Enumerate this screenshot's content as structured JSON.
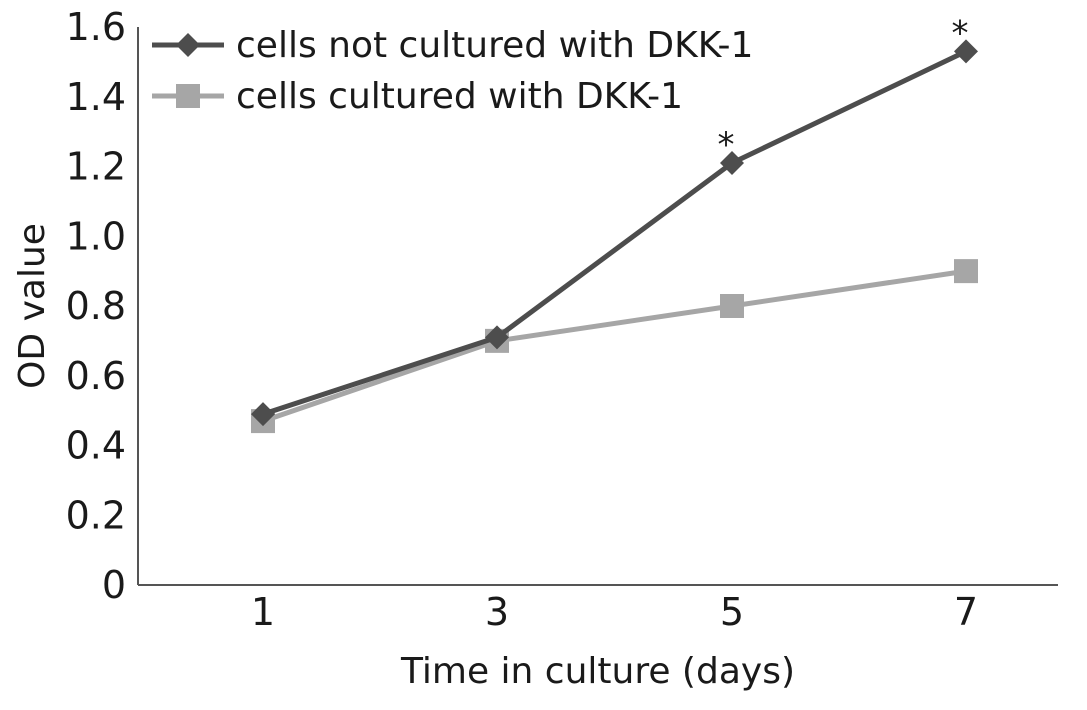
{
  "chart_data": {
    "type": "line",
    "title": "",
    "xlabel": "Time in culture (days)",
    "ylabel": "OD value",
    "x": [
      1,
      3,
      5,
      7
    ],
    "xticks": [
      "1",
      "3",
      "5",
      "7"
    ],
    "ylim": [
      0,
      1.6
    ],
    "yticks": [
      "0",
      "0.2",
      "0.4",
      "0.6",
      "0.8",
      "1.0",
      "1.2",
      "1.4",
      "1.6"
    ],
    "grid": false,
    "legend_position": "top-left",
    "series": [
      {
        "name": "cells not cultured with DKK-1",
        "values": [
          0.49,
          0.71,
          1.21,
          1.53
        ],
        "marker": "diamond",
        "color": "#4d4d4d",
        "annotations": [
          "",
          "",
          "*",
          "*"
        ]
      },
      {
        "name": "cells cultured with DKK-1",
        "values": [
          0.47,
          0.7,
          0.8,
          0.9
        ],
        "marker": "square",
        "color": "#a6a6a6",
        "annotations": [
          "",
          "",
          "",
          ""
        ]
      }
    ]
  }
}
